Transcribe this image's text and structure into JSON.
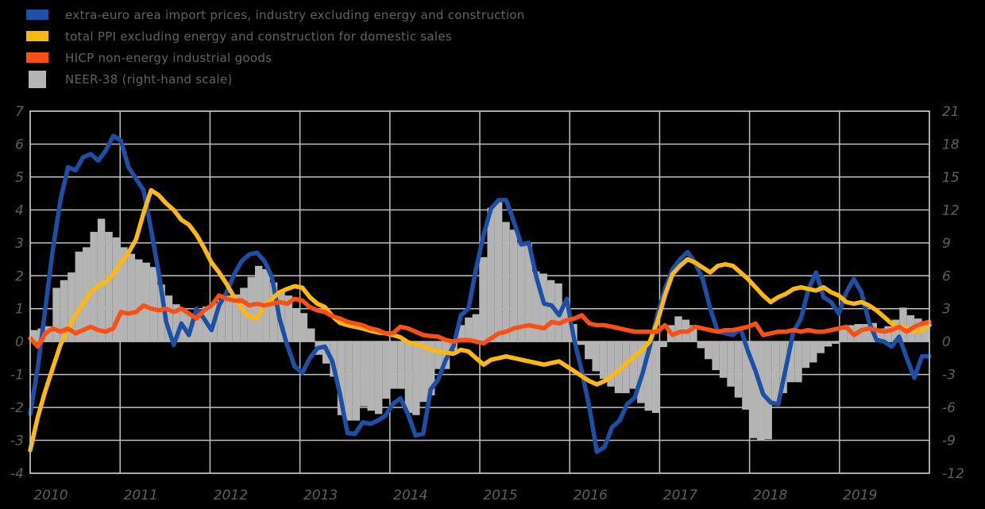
{
  "legend": {
    "items": [
      {
        "id": "import-prices",
        "label": "extra-euro area import prices, industry excluding energy and construction",
        "color": "#1d4fa5",
        "swatch": "line"
      },
      {
        "id": "ppi",
        "label": "total PPI excluding energy and construction for domestic sales",
        "color": "#fdb813",
        "swatch": "line"
      },
      {
        "id": "hicp-neig",
        "label": "HICP non-energy industrial goods",
        "color": "#fb4f14",
        "swatch": "line"
      },
      {
        "id": "neer",
        "label": "NEER-38 (right-hand scale)",
        "color": "#b4b4b4",
        "swatch": "bar"
      }
    ]
  },
  "chart_data": {
    "type": "combo",
    "frequency": "monthly",
    "start": "2010-01",
    "end": "2019-12",
    "title": "",
    "grid": true,
    "x_tick_labels": [
      "2010",
      "2011",
      "2012",
      "2013",
      "2014",
      "2015",
      "2016",
      "2017",
      "2018",
      "2019"
    ],
    "axes": {
      "left": {
        "ticks": [
          7,
          6,
          5,
          4,
          3,
          2,
          1,
          0,
          -1,
          -2,
          -3,
          -4
        ]
      },
      "right": {
        "ticks": [
          21,
          18,
          15,
          12,
          9,
          6,
          3,
          0,
          -3,
          -6,
          -9,
          -12
        ]
      }
    },
    "colors": {
      "grid": "#c0c0c0",
      "bars": "#b4b4b4",
      "background": "#000000",
      "tick_text": "#5e5e5e"
    },
    "series": [
      {
        "name": "extra-euro area import prices, industry excluding energy and construction",
        "type": "line",
        "axis": "left",
        "color": "#1d4fa5",
        "values": [
          -2.2,
          -0.8,
          1.0,
          2.8,
          4.3,
          5.3,
          5.2,
          5.6,
          5.7,
          5.5,
          5.8,
          6.25,
          6.1,
          5.3,
          4.95,
          4.6,
          3.4,
          2.1,
          0.6,
          -0.1,
          0.55,
          0.2,
          1.0,
          0.7,
          0.35,
          1.1,
          1.5,
          2.05,
          2.45,
          2.65,
          2.7,
          2.45,
          1.95,
          0.7,
          -0.1,
          -0.75,
          -0.95,
          -0.5,
          -0.2,
          -0.15,
          -0.6,
          -1.6,
          -2.78,
          -2.8,
          -2.45,
          -2.5,
          -2.4,
          -2.25,
          -1.9,
          -1.72,
          -2.2,
          -2.85,
          -2.8,
          -1.45,
          -1.15,
          -0.55,
          -0.15,
          0.8,
          1.0,
          2.2,
          3.25,
          4.05,
          4.3,
          4.3,
          3.65,
          2.95,
          3.0,
          1.95,
          1.15,
          1.1,
          0.8,
          1.3,
          0.05,
          -0.9,
          -2.0,
          -3.35,
          -3.2,
          -2.6,
          -2.4,
          -1.9,
          -1.7,
          -1.0,
          -0.15,
          0.8,
          1.6,
          2.2,
          2.5,
          2.72,
          2.4,
          1.9,
          1.0,
          0.3,
          0.25,
          0.2,
          0.4,
          -0.3,
          -0.9,
          -1.6,
          -1.85,
          -1.9,
          -0.8,
          0.3,
          0.7,
          1.6,
          2.1,
          1.35,
          1.2,
          0.85,
          1.5,
          1.9,
          1.5,
          0.6,
          0.05,
          0.0,
          -0.15,
          0.15,
          -0.5,
          -1.1,
          -0.45,
          -0.45
        ]
      },
      {
        "name": "total PPI excluding energy and construction for domestic sales",
        "type": "line",
        "axis": "left",
        "color": "#fdb813",
        "values": [
          -3.3,
          -2.3,
          -1.5,
          -0.8,
          -0.1,
          0.4,
          0.8,
          1.15,
          1.5,
          1.7,
          1.8,
          2.05,
          2.4,
          2.7,
          3.1,
          3.9,
          4.6,
          4.45,
          4.2,
          4.0,
          3.7,
          3.55,
          3.25,
          2.85,
          2.4,
          2.1,
          1.75,
          1.35,
          1.0,
          0.75,
          0.7,
          1.1,
          1.3,
          1.5,
          1.6,
          1.68,
          1.64,
          1.35,
          1.15,
          1.05,
          0.77,
          0.57,
          0.5,
          0.45,
          0.4,
          0.33,
          0.28,
          0.25,
          0.2,
          0.13,
          -0.02,
          -0.08,
          -0.14,
          -0.25,
          -0.3,
          -0.33,
          -0.37,
          -0.25,
          -0.3,
          -0.5,
          -0.7,
          -0.55,
          -0.5,
          -0.45,
          -0.5,
          -0.55,
          -0.6,
          -0.65,
          -0.7,
          -0.65,
          -0.6,
          -0.75,
          -0.9,
          -1.05,
          -1.2,
          -1.3,
          -1.2,
          -1.05,
          -0.85,
          -0.65,
          -0.45,
          -0.25,
          0.0,
          0.6,
          1.4,
          2.05,
          2.3,
          2.5,
          2.4,
          2.25,
          2.1,
          2.3,
          2.35,
          2.3,
          2.1,
          1.9,
          1.65,
          1.4,
          1.2,
          1.35,
          1.45,
          1.6,
          1.65,
          1.6,
          1.55,
          1.65,
          1.5,
          1.4,
          1.2,
          1.15,
          1.2,
          1.1,
          0.95,
          0.75,
          0.55,
          0.45,
          0.4,
          0.3,
          0.35,
          0.5
        ]
      },
      {
        "name": "HICP non-energy industrial goods",
        "type": "line",
        "axis": "left",
        "color": "#fb4f14",
        "values": [
          0.1,
          -0.15,
          0.25,
          0.4,
          0.3,
          0.4,
          0.25,
          0.35,
          0.45,
          0.35,
          0.3,
          0.4,
          0.9,
          0.85,
          0.9,
          1.1,
          1.0,
          0.95,
          1.0,
          0.9,
          1.0,
          0.85,
          0.7,
          0.95,
          1.1,
          1.4,
          1.3,
          1.25,
          1.25,
          1.1,
          1.15,
          1.1,
          1.15,
          1.2,
          1.15,
          1.3,
          1.25,
          1.05,
          0.95,
          0.9,
          0.77,
          0.7,
          0.6,
          0.55,
          0.5,
          0.4,
          0.35,
          0.25,
          0.25,
          0.45,
          0.4,
          0.3,
          0.2,
          0.17,
          0.15,
          0.05,
          0.0,
          0.05,
          0.05,
          0.0,
          -0.05,
          0.1,
          0.25,
          0.3,
          0.4,
          0.45,
          0.5,
          0.45,
          0.4,
          0.6,
          0.55,
          0.65,
          0.7,
          0.8,
          0.55,
          0.5,
          0.5,
          0.45,
          0.4,
          0.35,
          0.3,
          0.3,
          0.3,
          0.3,
          0.5,
          0.2,
          0.3,
          0.3,
          0.45,
          0.4,
          0.35,
          0.3,
          0.35,
          0.35,
          0.4,
          0.45,
          0.55,
          0.2,
          0.25,
          0.3,
          0.3,
          0.35,
          0.3,
          0.35,
          0.3,
          0.3,
          0.35,
          0.4,
          0.45,
          0.2,
          0.35,
          0.4,
          0.35,
          0.3,
          0.35,
          0.45,
          0.3,
          0.45,
          0.55,
          0.6
        ]
      },
      {
        "name": "NEER-38 (right-hand scale)",
        "type": "bar",
        "axis": "right",
        "color": "#b4b4b4",
        "values": [
          1.05,
          1.2,
          1.4,
          4.9,
          5.6,
          6.3,
          8.2,
          8.6,
          10.0,
          11.2,
          10.0,
          9.5,
          8.6,
          8.0,
          7.5,
          7.2,
          6.8,
          5.2,
          4.2,
          3.4,
          2.9,
          2.4,
          2.6,
          3.2,
          3.5,
          3.8,
          4.2,
          4.3,
          4.9,
          5.9,
          6.9,
          6.6,
          5.4,
          4.6,
          4.2,
          3.0,
          2.6,
          1.2,
          -1.2,
          -2.0,
          -3.2,
          -6.7,
          -7.2,
          -7.2,
          -5.9,
          -6.3,
          -6.6,
          -5.2,
          -4.3,
          -4.3,
          -6.5,
          -6.7,
          -5.5,
          -4.9,
          -2.5,
          -2.5,
          -0.8,
          1.5,
          2.2,
          2.5,
          7.7,
          12.2,
          12.7,
          10.9,
          10.2,
          8.9,
          9.0,
          6.4,
          6.2,
          5.6,
          5.3,
          3.6,
          1.6,
          -0.3,
          -1.6,
          -2.7,
          -3.4,
          -4.1,
          -4.7,
          -4.7,
          -4.3,
          -5.6,
          -6.3,
          -6.5,
          -0.5,
          1.5,
          2.3,
          2.0,
          1.5,
          -0.6,
          -1.6,
          -2.6,
          -3.3,
          -4.1,
          -5.1,
          -6.2,
          -8.8,
          -9.0,
          -8.9,
          -5.8,
          -4.7,
          -3.7,
          -3.7,
          -2.4,
          -1.9,
          -1.05,
          -0.45,
          -0.2,
          1.1,
          1.5,
          1.6,
          1.6,
          1.7,
          1.2,
          1.4,
          2.0,
          3.1,
          2.4,
          2.1,
          1.7
        ]
      }
    ]
  }
}
